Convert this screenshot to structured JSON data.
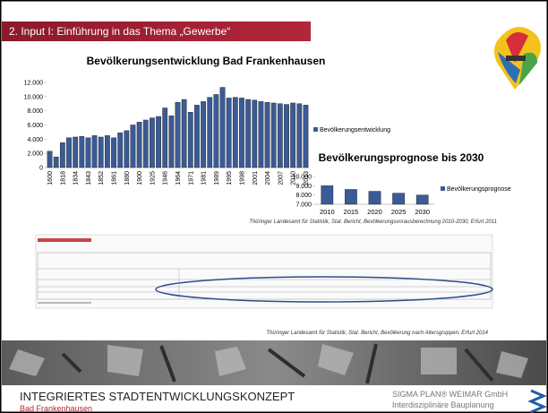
{
  "slide": {
    "header": "2. Input I: Einführung in das Thema „Gewerbe“",
    "source_1": "Thüringer Landesamt für Statistik, Stat. Bericht, Bevölkerungsvorausberechnung 2010-2030, Erfurt 2011",
    "source_2": "Thüringer Landesamt für Statistik, Stat. Bericht, Bevölkerung nach Altersgruppen, Erfurt 2014",
    "footer_title": "INTEGRIERTES STADTENTWICKLUNGSKONZEPT",
    "footer_subtitle": "Bad Frankenhausen",
    "company": "SIGMA PLAN® WEIMAR GmbH",
    "company_sub": "Interdisziplinäre  Bauplanung"
  },
  "chart_data": [
    {
      "type": "bar",
      "title": "Bevölkerungsentwicklung Bad Frankenhausen",
      "categories": [
        "1600",
        null,
        "1818",
        null,
        "1834",
        null,
        "1843",
        null,
        "1852",
        null,
        "1861",
        null,
        "1880",
        null,
        "1900",
        null,
        "1925",
        null,
        "1946",
        null,
        "1964",
        null,
        "1971",
        null,
        "1981",
        null,
        "1989",
        null,
        "1995",
        null,
        "1998",
        null,
        "2001",
        null,
        "2004",
        null,
        "2007",
        null,
        "2010",
        null,
        "2013"
      ],
      "series": [
        {
          "name": "Bevölkerungsentwicklung",
          "color": "#3b5b96",
          "values": [
            2300,
            1500,
            3500,
            4200,
            4300,
            4400,
            4200,
            4500,
            4300,
            4500,
            4200,
            4900,
            5200,
            6000,
            6400,
            6700,
            7000,
            7200,
            8400,
            7300,
            9200,
            9600,
            7800,
            8800,
            9300,
            9900,
            10300,
            11300,
            9800,
            9900,
            9800,
            9600,
            9500,
            9300,
            9200,
            9100,
            9000,
            8900,
            9100,
            9000,
            8800
          ]
        }
      ],
      "ylim": [
        0,
        12000
      ],
      "yticks": [
        0,
        {
          "value": 2000,
          "label": "2.000"
        },
        {
          "value": 4000,
          "label": "4.000"
        },
        {
          "value": 6000,
          "label": "6.000"
        },
        {
          "value": 8000,
          "label": "8.000"
        },
        {
          "value": 10000,
          "label": "10.000"
        },
        {
          "value": 12000,
          "label": "12.000"
        }
      ],
      "grid": false,
      "legend": "right"
    },
    {
      "type": "bar",
      "title": "Bevölkerungsprognose bis 2030",
      "categories": [
        "2010",
        "2015",
        "2020",
        "2025",
        "2030"
      ],
      "series": [
        {
          "name": "Bevölkerungsprognose",
          "color": "#3b5b96",
          "values": [
            9000,
            8600,
            8400,
            8200,
            8000
          ]
        }
      ],
      "ylim": [
        7000,
        10000
      ],
      "yticks": [
        {
          "value": 7000,
          "label": "7.000"
        },
        {
          "value": 8000,
          "label": "8.000"
        },
        {
          "value": 9000,
          "label": "9.000"
        },
        {
          "value": 10000,
          "label": "10.000"
        }
      ],
      "grid": false,
      "legend": "right"
    }
  ]
}
